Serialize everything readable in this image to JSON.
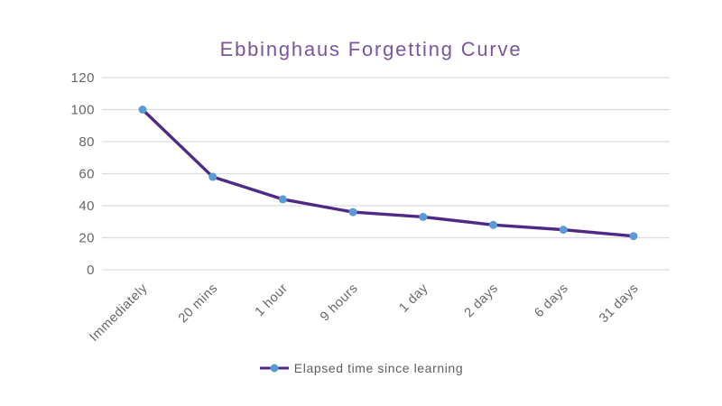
{
  "chart_data": {
    "type": "line",
    "title": "Ebbinghaus Forgetting Curve",
    "categories": [
      "Immediately",
      "20 mins",
      "1 hour",
      "9 hours",
      "1 day",
      "2 days",
      "6 days",
      "31 days"
    ],
    "series": [
      {
        "name": "Elapsed time since learning",
        "values": [
          100,
          58,
          44,
          36,
          33,
          28,
          25,
          21
        ]
      }
    ],
    "xlabel": "",
    "ylabel": "",
    "ylim": [
      0,
      120
    ],
    "yticks": [
      0,
      20,
      40,
      60,
      80,
      100,
      120
    ],
    "grid": "horizontal",
    "legend_position": "bottom"
  },
  "colors": {
    "line": "#4f2a85",
    "marker": "#5b9bd5",
    "title": "#7a559e",
    "axis_text": "#666666",
    "gridline": "#dcdcdc",
    "background": "#ffffff"
  }
}
